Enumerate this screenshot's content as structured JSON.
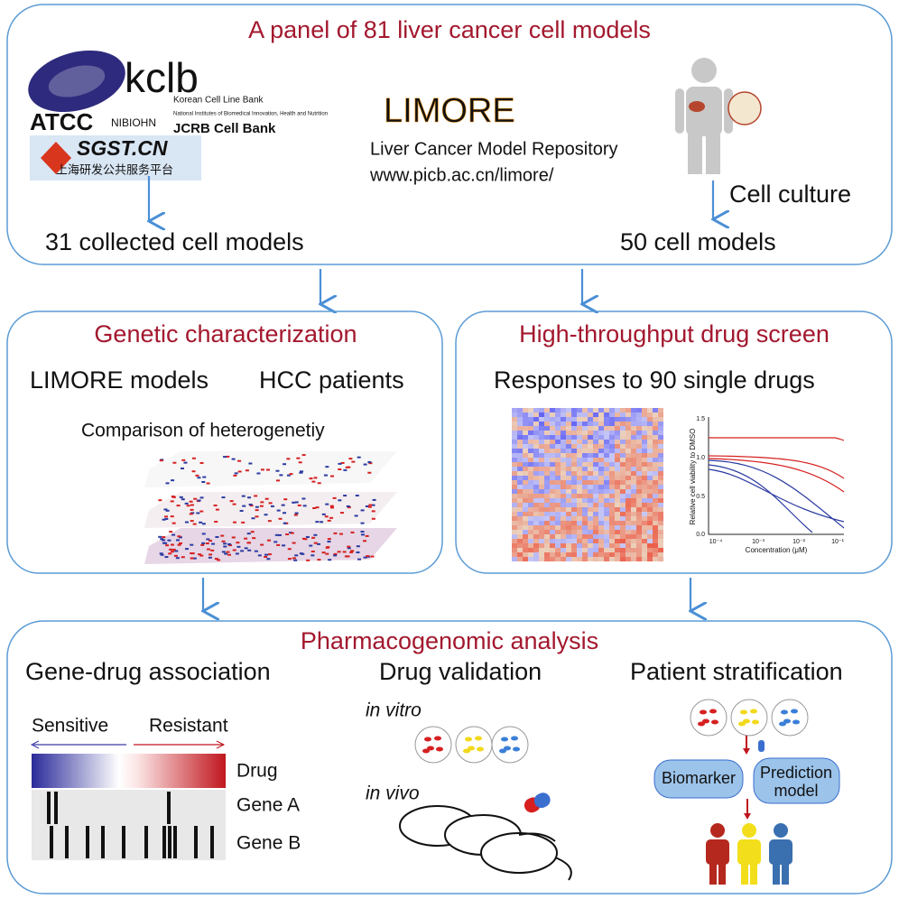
{
  "top_panel": {
    "title": "A panel of 81 liver cancer cell models",
    "logos": {
      "atcc": "ATCC",
      "kclb": "kclb",
      "kclb_name": "Korean Cell Line Bank",
      "nibiohn": "NIBIOHN",
      "nibiohn_name": "National Institutes of Biomedical Innovation, Health and Nutrition",
      "jcrb": "JCRB Cell Bank",
      "sgst": "SGST.CN",
      "sgst_name": "上海研发公共服务平台"
    },
    "repository": {
      "name": "LIMORE",
      "full_name": "Liver Cancer Model Repository",
      "url": "www.picb.ac.cn/limore/"
    },
    "cell_culture": "Cell culture",
    "collected": "31 collected cell models",
    "cultured": "50 cell models"
  },
  "genetic_panel": {
    "title": "Genetic characterization",
    "left": "LIMORE models",
    "right": "HCC patients",
    "caption": "Comparison of heterogenetiy"
  },
  "drug_panel": {
    "title": "High-throughput drug screen",
    "subtitle": "Responses to 90 single drugs",
    "plot": {
      "y_label": "Relative cell viability to DMSO",
      "x_label": "Concentration (μM)",
      "yticks": [
        "1.5",
        "1.0",
        "0.5",
        "0.0"
      ],
      "xticks": [
        "10⁻⁴",
        "10⁻³",
        "10⁻²",
        "10⁻¹"
      ]
    }
  },
  "pharmaco_panel": {
    "title": "Pharmacogenomic analysis",
    "association": {
      "title": "Gene-drug association",
      "sensitive": "Sensitive",
      "resistant": "Resistant",
      "drug": "Drug",
      "gene_a": "Gene A",
      "gene_b": "Gene B"
    },
    "validation": {
      "title": "Drug validation",
      "in_vitro": "in vitro",
      "in_vivo": "in vivo"
    },
    "stratification": {
      "title": "Patient stratification",
      "biomarker": "Biomarker",
      "prediction_1": "Prediction",
      "prediction_2": "model"
    }
  }
}
